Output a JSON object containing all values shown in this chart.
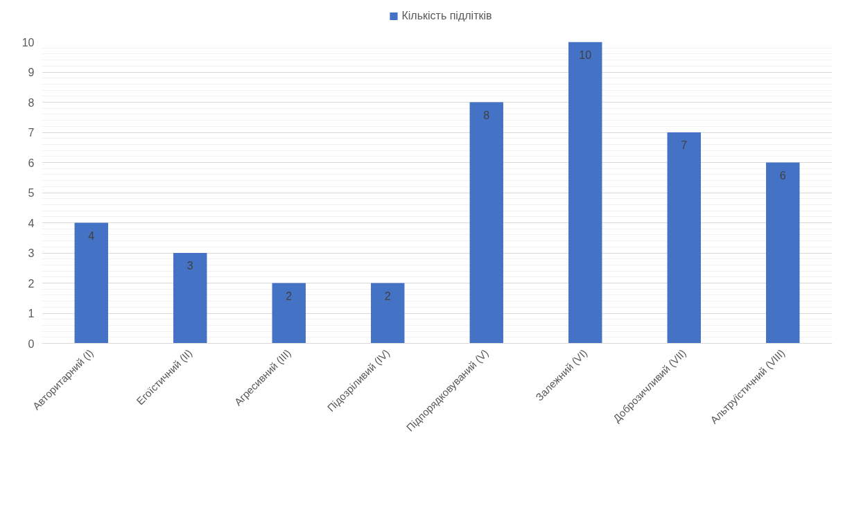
{
  "chart_data": {
    "type": "bar",
    "categories": [
      "Авторитарний (I)",
      "Егоїстичний (II)",
      "Агресивний (III)",
      "Підозріливий (IV)",
      "Підпорядковуваний (V)",
      "Залежний (VI)",
      "Доброзичливий (VII)",
      "Альтруїстичний (VIII)"
    ],
    "series": [
      {
        "name": "Кількість підлітків",
        "color": "#4472c4",
        "values": [
          4,
          3,
          2,
          2,
          8,
          10,
          7,
          6
        ]
      }
    ],
    "ylim": [
      0,
      10
    ],
    "yticks": [
      0,
      1,
      2,
      3,
      4,
      5,
      6,
      7,
      8,
      9,
      10
    ],
    "grid": "y",
    "legend": "top",
    "data_labels": true
  }
}
